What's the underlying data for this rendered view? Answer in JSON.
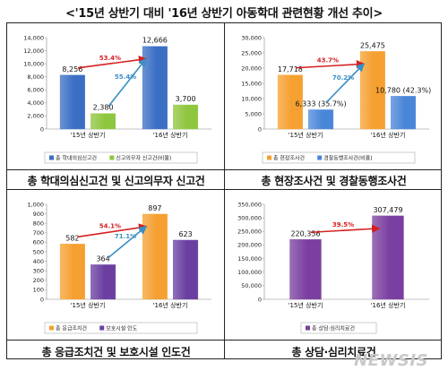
{
  "page": {
    "title": "<'15년 상반기 대비 '16년 상반기 아동학대 관련현황 개선 추이>",
    "watermark": "NEWSIS"
  },
  "chart_data": [
    {
      "type": "bar",
      "categories": [
        "'15년 상반기",
        "'16년 상반기"
      ],
      "series": [
        {
          "name": "총 학대의심신고건",
          "values": [
            8256,
            12666
          ],
          "color": "#3b6fc4"
        },
        {
          "name": "신고의무자 신고건(비율)",
          "values": [
            2380,
            3700
          ],
          "color": "#8fc63f"
        }
      ],
      "ylim": [
        0,
        14000
      ],
      "yticks": [
        0,
        2000,
        4000,
        6000,
        8000,
        10000,
        12000,
        14000
      ],
      "value_labels": [
        [
          "8,256",
          "12,666"
        ],
        [
          "2,380",
          "3,700"
        ]
      ],
      "annotations": [
        {
          "text": "53.4%",
          "color": "#d42020",
          "from": [
            0,
            0
          ],
          "to": [
            1,
            0
          ]
        },
        {
          "text": "55.4%",
          "color": "#3a8fc4",
          "from": [
            0,
            1
          ],
          "to": [
            1,
            0
          ]
        }
      ],
      "caption": "총 학대의심신고건 및 신고의무자 신고건"
    },
    {
      "type": "bar",
      "categories": [
        "'15년 상반기",
        "'16년 상반기"
      ],
      "series": [
        {
          "name": "총 현장조사건",
          "values": [
            17718,
            25475
          ],
          "color": "#f5a030"
        },
        {
          "name": "경찰동행조사건(비율)",
          "values": [
            6333,
            10780
          ],
          "color": "#4a86d8"
        }
      ],
      "ylim": [
        0,
        30000
      ],
      "yticks": [
        0,
        5000,
        10000,
        15000,
        20000,
        25000,
        30000
      ],
      "value_labels": [
        [
          "17,718",
          "25,475"
        ],
        [
          "6,333 (35.7%)",
          "10,780 (42.3%)"
        ]
      ],
      "annotations": [
        {
          "text": "43.7%",
          "color": "#d42020",
          "from": [
            0,
            0
          ],
          "to": [
            1,
            0
          ]
        },
        {
          "text": "70.2%",
          "color": "#3a8fc4",
          "from": [
            0,
            1
          ],
          "to": [
            1,
            0
          ]
        }
      ],
      "caption": "총 현장조사건 및 경찰동행조사건"
    },
    {
      "type": "bar",
      "categories": [
        "'15년 상반기",
        "'16년 상반기"
      ],
      "series": [
        {
          "name": "총 응급조치건",
          "values": [
            582,
            897
          ],
          "color": "#f5a030"
        },
        {
          "name": "보호시설 인도",
          "values": [
            364,
            623
          ],
          "color": "#6a3fa0"
        }
      ],
      "ylim": [
        0,
        1000
      ],
      "yticks": [
        0,
        100,
        200,
        300,
        400,
        500,
        600,
        700,
        800,
        900,
        1000
      ],
      "value_labels": [
        [
          "582",
          "897"
        ],
        [
          "364",
          "623"
        ]
      ],
      "annotations": [
        {
          "text": "54.1%",
          "color": "#d42020",
          "from": [
            0,
            0
          ],
          "to": [
            1,
            0
          ]
        },
        {
          "text": "71.1%",
          "color": "#3a8fc4",
          "from": [
            0,
            1
          ],
          "to": [
            1,
            0
          ]
        }
      ],
      "caption": "총 응급조치건 및 보호시설 인도건"
    },
    {
      "type": "bar",
      "categories": [
        "'15년 상반기",
        "'16년 상반기"
      ],
      "series": [
        {
          "name": "총 상담·심리치료건",
          "values": [
            220356,
            307479
          ],
          "color": "#7a3fa0"
        }
      ],
      "ylim": [
        0,
        350000
      ],
      "yticks": [
        0,
        50000,
        100000,
        150000,
        200000,
        250000,
        300000,
        350000
      ],
      "value_labels": [
        [
          "220,356",
          "307,479"
        ]
      ],
      "annotations": [
        {
          "text": "39.5%",
          "color": "#d42020",
          "from": [
            0,
            0
          ],
          "to": [
            1,
            0
          ]
        }
      ],
      "caption": "총 상담·심리치료건"
    }
  ]
}
